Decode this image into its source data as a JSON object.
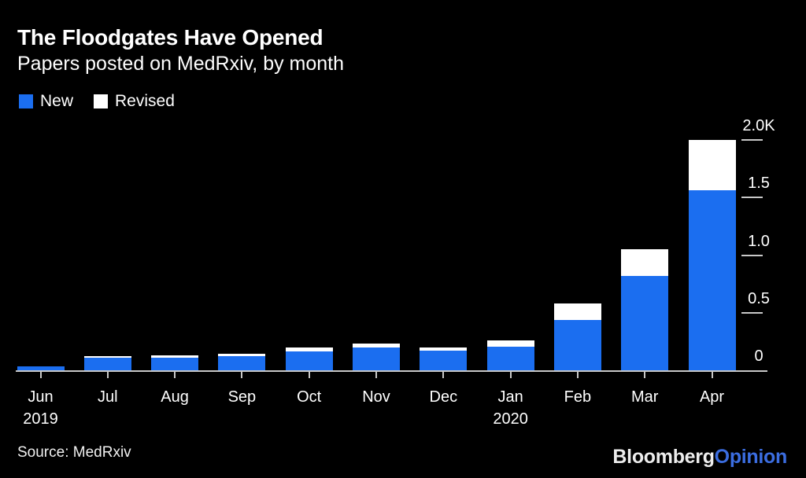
{
  "header": {
    "title": "The Floodgates Have Opened",
    "subtitle": "Papers posted on MedRxiv, by month"
  },
  "legend": {
    "items": [
      {
        "label": "New",
        "color": "#1b6ef0"
      },
      {
        "label": "Revised",
        "color": "#ffffff"
      }
    ]
  },
  "chart_data": {
    "type": "bar",
    "stacked": true,
    "title": "The Floodgates Have Opened",
    "subtitle": "Papers posted on MedRxiv, by month",
    "ylabel": "Papers posted",
    "ylim": [
      0,
      2000
    ],
    "grid": false,
    "axis_side": "right",
    "legend_position": "top-left",
    "categories": [
      {
        "month": "Jun",
        "year": "2019"
      },
      {
        "month": "Jul"
      },
      {
        "month": "Aug"
      },
      {
        "month": "Sep"
      },
      {
        "month": "Oct"
      },
      {
        "month": "Nov"
      },
      {
        "month": "Dec"
      },
      {
        "month": "Jan",
        "year": "2020"
      },
      {
        "month": "Feb"
      },
      {
        "month": "Mar"
      },
      {
        "month": "Apr"
      }
    ],
    "series": [
      {
        "name": "New",
        "color": "#1b6ef0",
        "values": [
          35,
          110,
          108,
          125,
          165,
          195,
          170,
          205,
          440,
          820,
          1560
        ]
      },
      {
        "name": "Revised",
        "color": "#ffffff",
        "values": [
          0,
          15,
          22,
          20,
          30,
          40,
          25,
          55,
          140,
          230,
          440
        ]
      }
    ],
    "totals": [
      35,
      125,
      130,
      145,
      195,
      235,
      195,
      260,
      580,
      1050,
      2000
    ],
    "yticks": [
      {
        "value": 2000,
        "label": "2.0K"
      },
      {
        "value": 1500,
        "label": "1.5"
      },
      {
        "value": 1000,
        "label": "1.0"
      },
      {
        "value": 500,
        "label": "0.5"
      },
      {
        "value": 0,
        "label": "0"
      }
    ]
  },
  "footer": {
    "source": "Source: MedRxiv",
    "logo_bloomberg": "Bloomberg",
    "logo_opinion": "Opinion"
  },
  "colors": {
    "background": "#000000",
    "bar_new": "#1b6ef0",
    "bar_revised": "#ffffff",
    "axis": "#c8c8c8",
    "text": "#ffffff",
    "logo_opinion_blue": "#3b6de0"
  }
}
